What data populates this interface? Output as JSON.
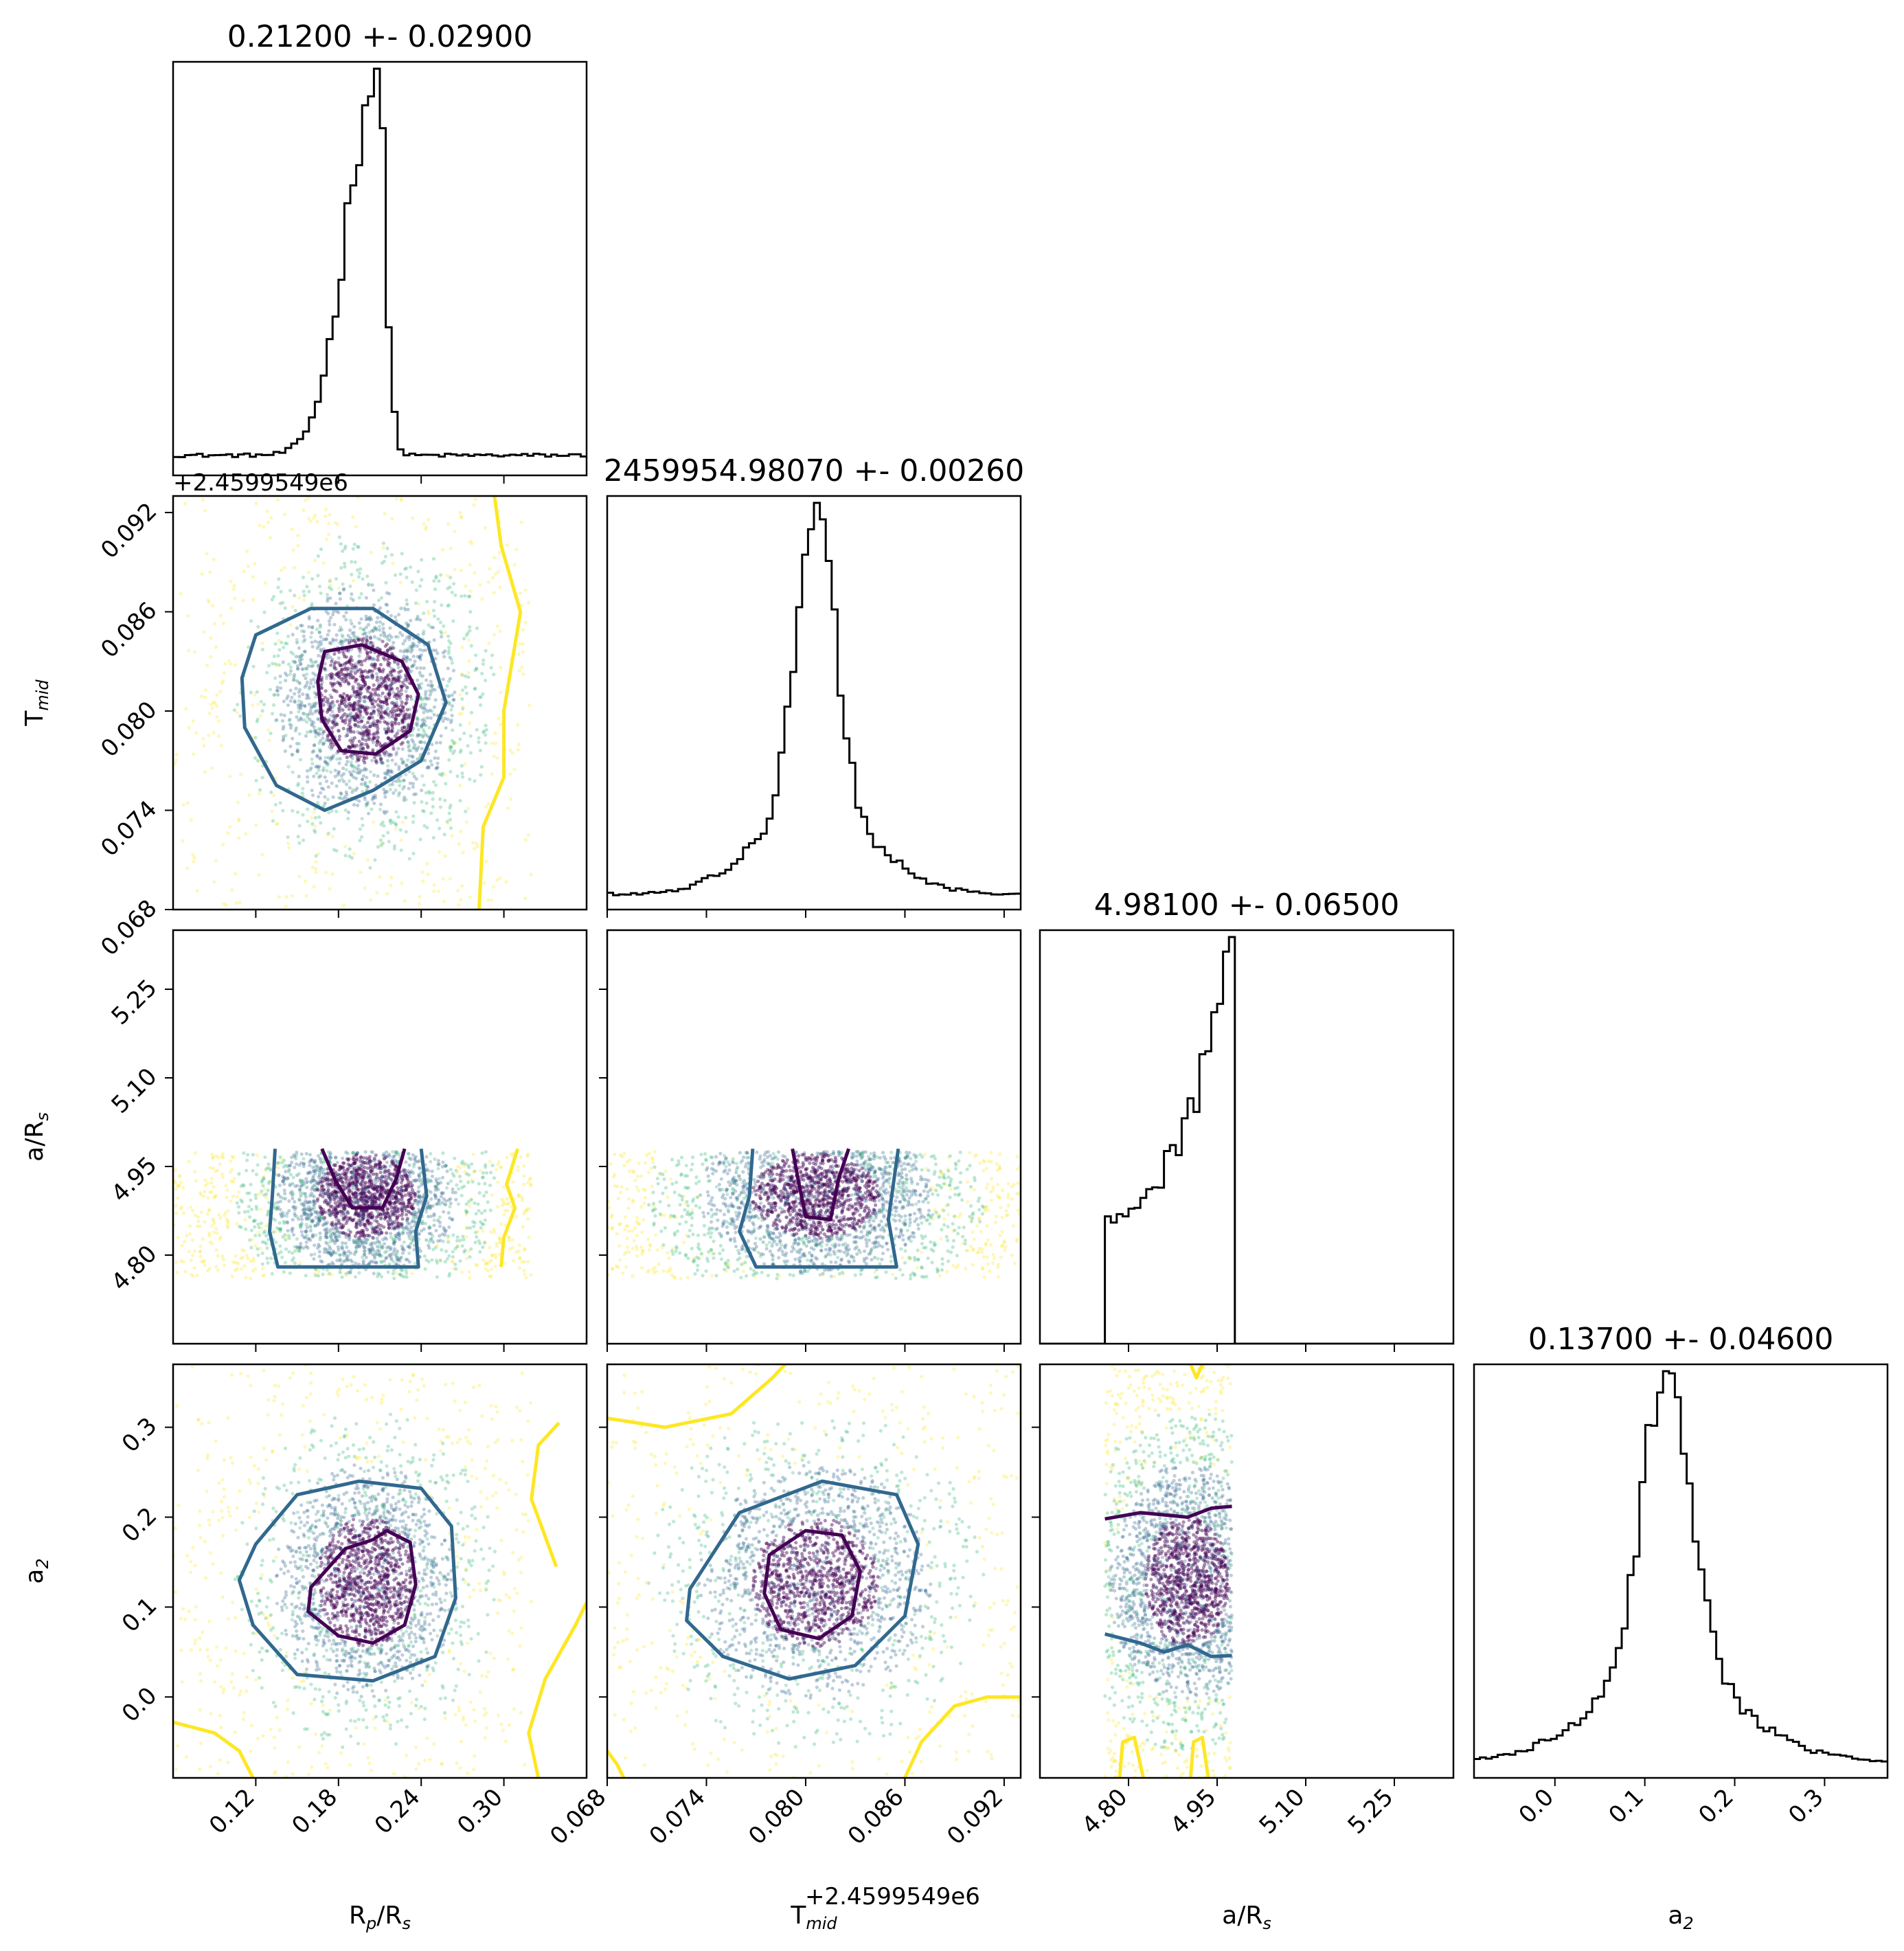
{
  "chart_data": {
    "type": "corner",
    "parameters": [
      {
        "key": "rp",
        "label": "R",
        "sub": "p",
        "suffix": "/R",
        "sub2": "s",
        "title": "0.21200 +- 0.02900",
        "range": [
          0.06,
          0.36
        ],
        "ticks": [
          0.12,
          0.18,
          0.24,
          0.3
        ],
        "tick_labels": [
          "0.12",
          "0.18",
          "0.24",
          "0.30"
        ]
      },
      {
        "key": "tmid",
        "label": "T",
        "sub": "mid",
        "suffix": "",
        "sub2": "",
        "title": "2459954.98070 +- 0.00260",
        "range": [
          0.068,
          0.093
        ],
        "ticks": [
          0.068,
          0.074,
          0.08,
          0.086,
          0.092
        ],
        "tick_labels": [
          "0.068",
          "0.074",
          "0.080",
          "0.086",
          "0.092"
        ],
        "offset_label": "+2.4599549e6"
      },
      {
        "key": "ars",
        "label": "a/R",
        "sub": "s",
        "suffix": "",
        "sub2": "",
        "title": "4.98100 +- 0.06500",
        "range": [
          4.65,
          5.35
        ],
        "ticks": [
          4.8,
          4.95,
          5.1,
          5.25
        ],
        "tick_labels": [
          "4.80",
          "4.95",
          "5.10",
          "5.25"
        ]
      },
      {
        "key": "a2",
        "label": "a",
        "sub": "2",
        "suffix": "",
        "sub2": "",
        "title": "0.13700 +- 0.04600",
        "range": [
          -0.09,
          0.37
        ],
        "ticks": [
          0.0,
          0.1,
          0.2,
          0.3
        ],
        "tick_labels": [
          "0.0",
          "0.1",
          "0.2",
          "0.3"
        ]
      }
    ],
    "histograms": [
      {
        "param": "rp",
        "dist": {
          "kind": "asym_peak",
          "peak": 0.208,
          "wl": 0.022,
          "wr": 0.006,
          "bg": 0.05,
          "hi": 1.0
        }
      },
      {
        "param": "tmid",
        "dist": {
          "kind": "peak",
          "peak": 0.0806,
          "w": 0.0012,
          "bg": 0.04,
          "tail": 0.0035
        }
      },
      {
        "param": "ars",
        "dist": {
          "kind": "ramp",
          "start": 4.76,
          "end": 4.975,
          "lo": 0.33,
          "hi": 1.0
        }
      },
      {
        "param": "a2",
        "dist": {
          "kind": "peak",
          "peak": 0.125,
          "w": 0.028,
          "bg": 0.04,
          "tail": 0.08
        }
      }
    ],
    "scatter_cmap": [
      "#440154",
      "#31688e",
      "#35b779",
      "#fde725"
    ],
    "contour_colors": [
      "#440154",
      "#31688e",
      "#fde725"
    ],
    "contours": [
      {
        "pair": [
          0,
          1
        ],
        "levels": [
          [
            [
              0.17,
              0.0836
            ],
            [
              0.197,
              0.084
            ],
            [
              0.226,
              0.083
            ],
            [
              0.238,
              0.081
            ],
            [
              0.232,
              0.0788
            ],
            [
              0.207,
              0.0774
            ],
            [
              0.182,
              0.0776
            ],
            [
              0.168,
              0.0795
            ],
            [
              0.165,
              0.0818
            ]
          ],
          [
            [
              0.12,
              0.0846
            ],
            [
              0.16,
              0.0862
            ],
            [
              0.205,
              0.0862
            ],
            [
              0.245,
              0.084
            ],
            [
              0.258,
              0.0805
            ],
            [
              0.24,
              0.077
            ],
            [
              0.205,
              0.0752
            ],
            [
              0.17,
              0.074
            ],
            [
              0.135,
              0.0755
            ],
            [
              0.112,
              0.079
            ],
            [
              0.11,
              0.082
            ]
          ],
          [
            [
              0.29,
              0.095
            ],
            [
              0.298,
              0.09
            ],
            [
              0.312,
              0.086
            ],
            [
              0.3,
              0.08
            ],
            [
              0.3,
              0.076
            ],
            [
              0.285,
              0.073
            ],
            [
              0.282,
              0.068
            ]
          ]
        ]
      },
      {
        "pair": [
          0,
          2
        ],
        "levels": [
          [
            [
              0.168,
              4.98
            ],
            [
              0.178,
              4.925
            ],
            [
              0.19,
              4.88
            ],
            [
              0.212,
              4.88
            ],
            [
              0.222,
              4.93
            ],
            [
              0.228,
              4.98
            ]
          ],
          [
            [
              0.134,
              4.98
            ],
            [
              0.132,
              4.9
            ],
            [
              0.13,
              4.84
            ],
            [
              0.136,
              4.78
            ],
            [
              0.238,
              4.78
            ],
            [
              0.236,
              4.84
            ],
            [
              0.244,
              4.9
            ],
            [
              0.24,
              4.98
            ]
          ],
          [
            [
              0.31,
              4.98
            ],
            [
              0.302,
              4.92
            ],
            [
              0.308,
              4.88
            ],
            [
              0.3,
              4.83
            ],
            [
              0.298,
              4.78
            ]
          ]
        ]
      },
      {
        "pair": [
          1,
          2
        ],
        "levels": [
          [
            [
              0.0792,
              4.98
            ],
            [
              0.0796,
              4.92
            ],
            [
              0.08,
              4.865
            ],
            [
              0.0815,
              4.86
            ],
            [
              0.082,
              4.93
            ],
            [
              0.0826,
              4.98
            ]
          ],
          [
            [
              0.0768,
              4.98
            ],
            [
              0.0766,
              4.9
            ],
            [
              0.076,
              4.84
            ],
            [
              0.077,
              4.78
            ],
            [
              0.0855,
              4.78
            ],
            [
              0.085,
              4.86
            ],
            [
              0.0856,
              4.98
            ]
          ]
        ]
      },
      {
        "pair": [
          0,
          3
        ],
        "levels": [
          [
            [
              0.16,
              0.122
            ],
            [
              0.185,
              0.165
            ],
            [
              0.205,
              0.175
            ],
            [
              0.215,
              0.185
            ],
            [
              0.232,
              0.172
            ],
            [
              0.236,
              0.125
            ],
            [
              0.228,
              0.08
            ],
            [
              0.205,
              0.06
            ],
            [
              0.18,
              0.068
            ],
            [
              0.158,
              0.095
            ]
          ],
          [
            [
              0.12,
              0.17
            ],
            [
              0.15,
              0.225
            ],
            [
              0.195,
              0.24
            ],
            [
              0.24,
              0.232
            ],
            [
              0.262,
              0.19
            ],
            [
              0.265,
              0.11
            ],
            [
              0.25,
              0.045
            ],
            [
              0.205,
              0.018
            ],
            [
              0.15,
              0.025
            ],
            [
              0.118,
              0.08
            ],
            [
              0.108,
              0.13
            ]
          ],
          [
            [
              0.34,
              0.305
            ],
            [
              0.325,
              0.28
            ],
            [
              0.32,
              0.22
            ],
            [
              0.338,
              0.145
            ]
          ],
          [
            [
              0.325,
              -0.09
            ],
            [
              0.318,
              -0.04
            ],
            [
              0.33,
              0.02
            ],
            [
              0.352,
              0.08
            ],
            [
              0.36,
              0.105
            ]
          ],
          [
            [
              0.06,
              -0.028
            ],
            [
              0.09,
              -0.04
            ],
            [
              0.108,
              -0.06
            ],
            [
              0.118,
              -0.09
            ]
          ]
        ]
      },
      {
        "pair": [
          1,
          3
        ],
        "levels": [
          [
            [
              0.0778,
              0.158
            ],
            [
              0.08,
              0.185
            ],
            [
              0.0822,
              0.18
            ],
            [
              0.0833,
              0.14
            ],
            [
              0.0828,
              0.09
            ],
            [
              0.0808,
              0.065
            ],
            [
              0.0785,
              0.075
            ],
            [
              0.0775,
              0.115
            ]
          ],
          [
            [
              0.073,
              0.12
            ],
            [
              0.076,
              0.205
            ],
            [
              0.081,
              0.24
            ],
            [
              0.0855,
              0.225
            ],
            [
              0.0868,
              0.17
            ],
            [
              0.086,
              0.09
            ],
            [
              0.083,
              0.035
            ],
            [
              0.079,
              0.02
            ],
            [
              0.075,
              0.045
            ],
            [
              0.0728,
              0.085
            ]
          ],
          [
            [
              0.068,
              0.31
            ],
            [
              0.0715,
              0.3
            ],
            [
              0.0755,
              0.315
            ],
            [
              0.078,
              0.355
            ],
            [
              0.079,
              0.375
            ]
          ],
          [
            [
              0.086,
              -0.09
            ],
            [
              0.087,
              -0.05
            ],
            [
              0.089,
              -0.01
            ],
            [
              0.091,
              0.0
            ],
            [
              0.093,
              0.0
            ]
          ],
          [
            [
              0.068,
              -0.06
            ],
            [
              0.0686,
              -0.075
            ],
            [
              0.069,
              -0.09
            ]
          ]
        ]
      },
      {
        "pair": [
          2,
          3
        ],
        "levels": [
          [
            [
              4.76,
              0.198
            ],
            [
              4.82,
              0.205
            ],
            [
              4.9,
              0.2
            ],
            [
              4.94,
              0.21
            ],
            [
              4.975,
              0.212
            ]
          ],
          [
            [
              4.76,
              0.07
            ],
            [
              4.82,
              0.06
            ],
            [
              4.86,
              0.05
            ],
            [
              4.9,
              0.058
            ],
            [
              4.94,
              0.045
            ],
            [
              4.975,
              0.046
            ]
          ],
          [
            [
              4.785,
              -0.09
            ],
            [
              4.79,
              -0.05
            ],
            [
              4.81,
              -0.045
            ],
            [
              4.825,
              -0.09
            ]
          ],
          [
            [
              4.905,
              -0.09
            ],
            [
              4.91,
              -0.05
            ],
            [
              4.925,
              -0.045
            ],
            [
              4.935,
              -0.09
            ]
          ],
          [
            [
              4.905,
              0.37
            ],
            [
              4.915,
              0.355
            ],
            [
              4.925,
              0.37
            ]
          ]
        ]
      }
    ],
    "samples": {
      "rp": {
        "mean": 0.2,
        "sd": 0.03,
        "min": 0.06,
        "max": 0.32
      },
      "tmid": {
        "mean": 0.0806,
        "sd": 0.0032,
        "min": 0.068,
        "max": 0.093
      },
      "ars": {
        "mean": 4.9,
        "sd": 0.06,
        "min": 4.76,
        "max": 4.975
      },
      "a2": {
        "mean": 0.128,
        "sd": 0.06,
        "min": -0.09,
        "max": 0.37
      }
    }
  }
}
